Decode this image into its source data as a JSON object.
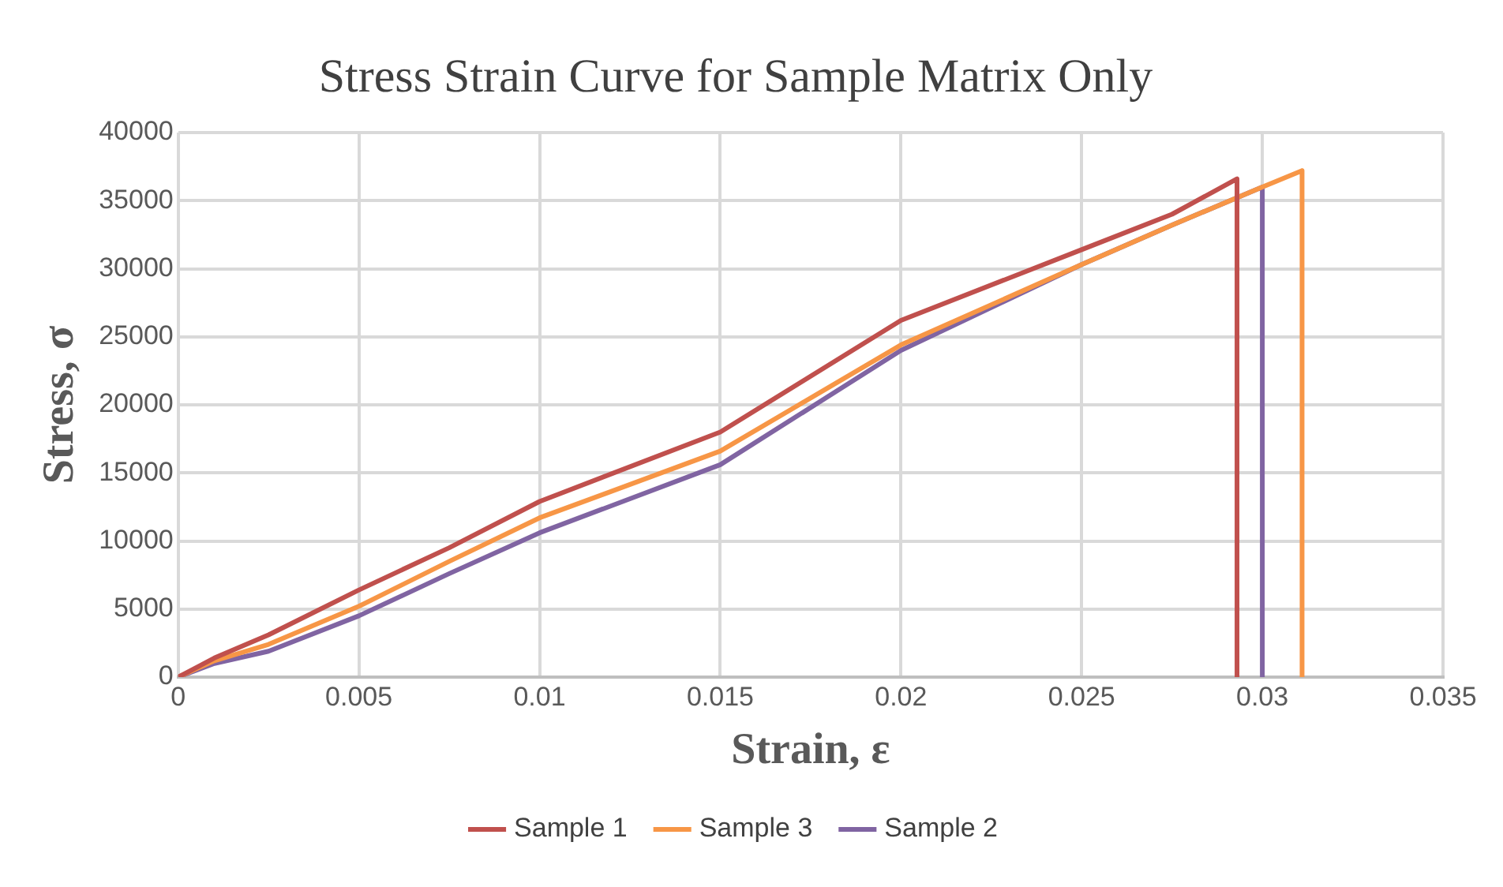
{
  "chart_data": {
    "type": "line",
    "title": "Stress Strain Curve for Sample Matrix Only",
    "xlabel": "Strain, ε",
    "ylabel": "Stress, σ",
    "xlim": [
      0,
      0.035
    ],
    "xticks": [
      0,
      0.005,
      0.01,
      0.015,
      0.02,
      0.025,
      0.03,
      0.035
    ],
    "ylim": [
      0,
      40000
    ],
    "yticks": [
      0,
      5000,
      10000,
      15000,
      20000,
      25000,
      30000,
      35000,
      40000
    ],
    "grid": true,
    "legend": "bottom",
    "marker": "none",
    "line_style": "solid",
    "series": [
      {
        "name": "Sample 1",
        "color": "#c0504d",
        "x": [
          0,
          0.001,
          0.0025,
          0.005,
          0.0075,
          0.01,
          0.015,
          0.02,
          0.025,
          0.0275,
          0.0293,
          0.0293
        ],
        "values": [
          0,
          1400,
          3100,
          6400,
          9500,
          12900,
          18000,
          26200,
          31400,
          34000,
          36600,
          0
        ]
      },
      {
        "name": "Sample 3",
        "color": "#f79646",
        "x": [
          0,
          0.001,
          0.0025,
          0.005,
          0.0075,
          0.01,
          0.015,
          0.02,
          0.025,
          0.0275,
          0.03,
          0.0311,
          0.0311
        ],
        "values": [
          0,
          1200,
          2400,
          5200,
          8500,
          11700,
          16600,
          24400,
          30300,
          33200,
          36000,
          37200,
          0
        ]
      },
      {
        "name": "Sample 2",
        "color": "#8064a2",
        "x": [
          0,
          0.001,
          0.0025,
          0.005,
          0.0075,
          0.01,
          0.015,
          0.02,
          0.025,
          0.0275,
          0.03,
          0.03
        ],
        "values": [
          0,
          1000,
          1900,
          4500,
          7600,
          10600,
          15600,
          24000,
          30300,
          33200,
          36000,
          0
        ]
      }
    ]
  }
}
